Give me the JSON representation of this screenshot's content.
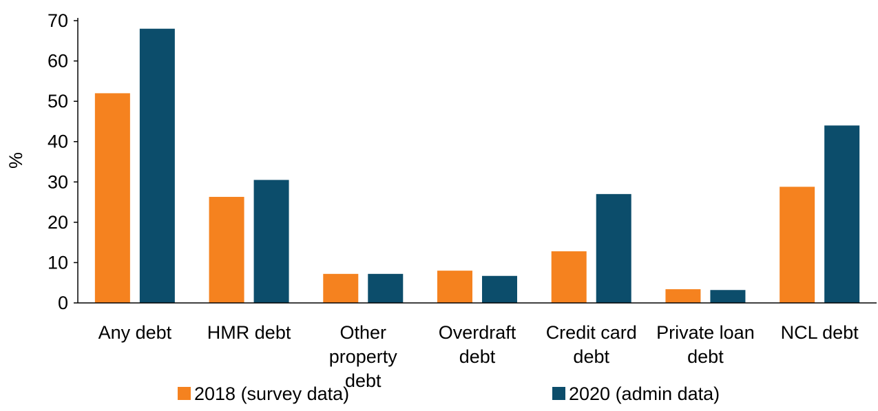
{
  "chart_data": {
    "type": "bar",
    "title": "",
    "xlabel": "",
    "ylabel": "%",
    "ylim": [
      0,
      70
    ],
    "yticks": [
      0,
      10,
      20,
      30,
      40,
      50,
      60,
      70
    ],
    "grid": false,
    "legend_position": "bottom",
    "categories": [
      [
        "Any debt"
      ],
      [
        "HMR debt"
      ],
      [
        "Other",
        "property",
        "debt"
      ],
      [
        "Overdraft",
        "debt"
      ],
      [
        "Credit card",
        "debt"
      ],
      [
        "Private loan",
        "debt"
      ],
      [
        "NCL debt"
      ]
    ],
    "series": [
      {
        "name": "2018 (survey data)",
        "color": "#f5821f",
        "values": [
          52,
          26.3,
          7.2,
          8.0,
          12.8,
          3.4,
          28.8
        ]
      },
      {
        "name": "2020 (admin data)",
        "color": "#0c4d6b",
        "values": [
          68,
          30.5,
          7.2,
          6.7,
          27.0,
          3.2,
          44.0
        ]
      }
    ]
  }
}
